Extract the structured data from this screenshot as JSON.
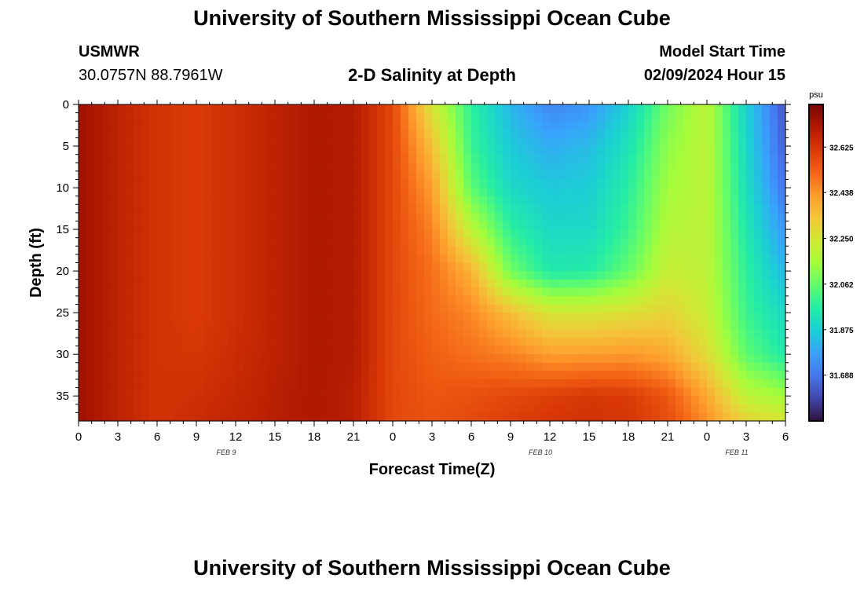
{
  "header": {
    "title": "University of Southern Mississippi Ocean Cube",
    "station_name": "USMWR",
    "coords": "30.0757N  88.7961W",
    "plot_title": "2-D Salinity at Depth",
    "model_start_label": "Model Start Time",
    "model_start_value": "02/09/2024 Hour 15"
  },
  "footer": {
    "title": "University of Southern Mississippi Ocean Cube"
  },
  "chart_data": {
    "type": "heatmap",
    "title": "2-D Salinity at Depth",
    "xlabel": "Forecast Time(Z)",
    "ylabel": "Depth (ft)",
    "x_tick_labels": [
      "0",
      "3",
      "6",
      "9",
      "12",
      "15",
      "18",
      "21",
      "0",
      "3",
      "6",
      "9",
      "12",
      "15",
      "18",
      "21",
      "0",
      "3",
      "6"
    ],
    "date_labels": [
      {
        "label": "FEB 9",
        "tick_index": 4
      },
      {
        "label": "FEB 10",
        "tick_index": 12
      },
      {
        "label": "FEB 11",
        "tick_index": 17
      }
    ],
    "y_ticks": [
      0,
      5,
      10,
      15,
      20,
      25,
      30,
      35
    ],
    "ylim": [
      0,
      38
    ],
    "y_inverted": true,
    "colorbar": {
      "unit": "psu",
      "tick_labels": [
        "32.625",
        "32.438",
        "32.250",
        "32.062",
        "31.875",
        "31.688"
      ],
      "tick_values": [
        32.625,
        32.438,
        32.25,
        32.062,
        31.875,
        31.688
      ],
      "range": [
        31.5,
        32.8
      ],
      "colormap": [
        "#30123b",
        "#4145ab",
        "#4675ed",
        "#39a2fc",
        "#1bcfd4",
        "#24eca6",
        "#61fc6c",
        "#a4fc3b",
        "#d1e834",
        "#f3c63a",
        "#fe9b2d",
        "#f36315",
        "#d93806",
        "#b11901",
        "#7a0402"
      ]
    },
    "salinity_field": {
      "description_units": "psu",
      "time_hours": [
        0,
        3,
        6,
        9,
        12,
        15,
        18,
        21,
        24,
        27,
        30,
        33,
        36,
        39,
        42,
        45,
        48,
        51,
        54
      ],
      "depth_ft": [
        0,
        5,
        10,
        15,
        20,
        25,
        30,
        35,
        38
      ],
      "values": [
        [
          32.74,
          32.74,
          32.74,
          32.74,
          32.74,
          32.74,
          32.74,
          32.74,
          32.74
        ],
        [
          32.68,
          32.68,
          32.68,
          32.68,
          32.68,
          32.68,
          32.68,
          32.68,
          32.68
        ],
        [
          32.63,
          32.63,
          32.63,
          32.63,
          32.63,
          32.63,
          32.63,
          32.63,
          32.63
        ],
        [
          32.61,
          32.61,
          32.61,
          32.61,
          32.61,
          32.61,
          32.62,
          32.64,
          32.65
        ],
        [
          32.64,
          32.64,
          32.64,
          32.64,
          32.64,
          32.64,
          32.65,
          32.66,
          32.67
        ],
        [
          32.68,
          32.68,
          32.68,
          32.68,
          32.68,
          32.68,
          32.68,
          32.69,
          32.69
        ],
        [
          32.71,
          32.71,
          32.71,
          32.71,
          32.71,
          32.71,
          32.71,
          32.71,
          32.71
        ],
        [
          32.7,
          32.7,
          32.7,
          32.7,
          32.7,
          32.7,
          32.7,
          32.69,
          32.69
        ],
        [
          32.58,
          32.58,
          32.58,
          32.58,
          32.58,
          32.58,
          32.58,
          32.58,
          32.58
        ],
        [
          32.25,
          32.35,
          32.42,
          32.47,
          32.5,
          32.51,
          32.53,
          32.55,
          32.56
        ],
        [
          31.98,
          32.0,
          32.05,
          32.2,
          32.38,
          32.46,
          32.5,
          32.56,
          32.58
        ],
        [
          31.82,
          31.86,
          31.9,
          31.98,
          32.08,
          32.35,
          32.47,
          32.58,
          32.6
        ],
        [
          31.72,
          31.8,
          31.86,
          31.9,
          31.95,
          32.25,
          32.42,
          32.6,
          32.62
        ],
        [
          31.75,
          31.83,
          31.87,
          31.9,
          31.96,
          32.25,
          32.42,
          32.62,
          32.63
        ],
        [
          31.88,
          31.93,
          31.97,
          32.0,
          32.06,
          32.27,
          32.43,
          32.61,
          32.62
        ],
        [
          32.08,
          32.12,
          32.15,
          32.18,
          32.22,
          32.3,
          32.4,
          32.55,
          32.57
        ],
        [
          32.2,
          32.2,
          32.2,
          32.2,
          32.2,
          32.22,
          32.28,
          32.4,
          32.45
        ],
        [
          31.88,
          31.9,
          31.92,
          31.95,
          31.98,
          32.0,
          32.05,
          32.2,
          32.3
        ],
        [
          31.62,
          31.64,
          31.68,
          31.75,
          31.82,
          31.9,
          31.95,
          32.15,
          32.25
        ]
      ]
    }
  }
}
